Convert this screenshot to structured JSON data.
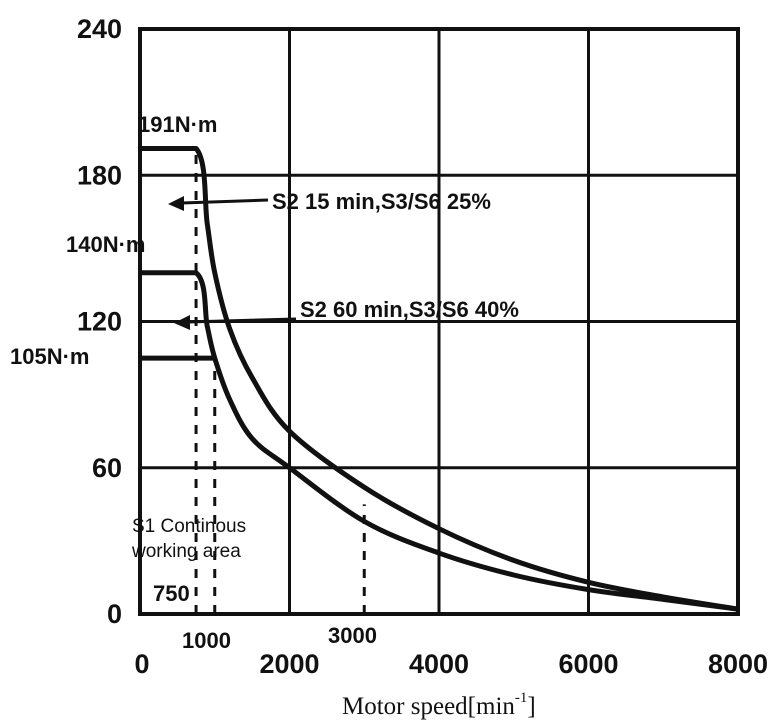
{
  "chart_data": {
    "type": "line",
    "title": "",
    "xlabel": "Motor speed[min",
    "xlabel_sup": "-1",
    "xlabel_close": "]",
    "ylabel": "",
    "xlim": [
      0,
      8000
    ],
    "ylim": [
      0,
      240
    ],
    "x_ticks": [
      0,
      2000,
      4000,
      6000,
      8000
    ],
    "x_tick_labels": [
      "0",
      "2000",
      "4000",
      "6000",
      "8000"
    ],
    "y_ticks": [
      0,
      60,
      120,
      180,
      240
    ],
    "y_tick_labels": [
      "0",
      "60",
      "120",
      "180",
      "240"
    ],
    "grid": true,
    "series": [
      {
        "name": "S2 15 min,S3/S6 25%",
        "x": [
          0,
          750,
          900,
          1000,
          1200,
          1500,
          2000,
          3000,
          4000,
          5000,
          6000,
          7000,
          8000
        ],
        "y": [
          191,
          191,
          160,
          140,
          117,
          97,
          75,
          52,
          35,
          22,
          13,
          7,
          2
        ]
      },
      {
        "name": "S2 60 min,S3/S6 40%",
        "x": [
          0,
          750,
          900,
          1000,
          1200,
          1500,
          2000,
          3000,
          4000,
          5000,
          6000,
          7000,
          8000
        ],
        "y": [
          140,
          140,
          118,
          105,
          88,
          72,
          60,
          38,
          25,
          16,
          10,
          6,
          2
        ]
      },
      {
        "name": "S1",
        "x": [
          0,
          1000
        ],
        "y": [
          105,
          105
        ]
      }
    ],
    "reference_lines": [
      {
        "x": 750,
        "y_from": 0,
        "y_to": 191
      },
      {
        "x": 1000,
        "y_from": 0,
        "y_to": 105
      },
      {
        "x": 3000,
        "y_from": 0,
        "y_to": 45
      }
    ],
    "annotations": {
      "peak_torque": "191N·m",
      "mid_torque": "140N·m",
      "cont_torque": "105N·m",
      "s2_15": "S2 15 min,S3/S6 25%",
      "s2_60": "S2 60 min,S3/S6 40%",
      "s1_line1": "S1 Continous",
      "s1_line2": "working area",
      "speed_750": "750",
      "speed_1000": "1000",
      "speed_3000": "3000"
    }
  }
}
